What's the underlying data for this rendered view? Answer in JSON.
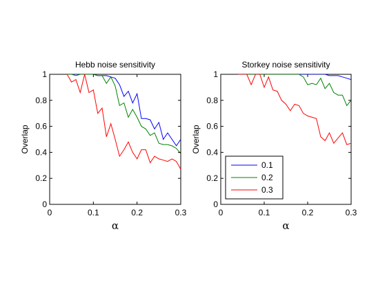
{
  "chart_data": [
    {
      "type": "line",
      "title": "Hebb noise sensitivity",
      "xlabel": "α",
      "ylabel": "Overlap",
      "xlim": [
        0,
        0.3
      ],
      "ylim": [
        0,
        1
      ],
      "xticks": [
        "0",
        "0.1",
        "0.2",
        "0.3"
      ],
      "yticks": [
        "0",
        "0.2",
        "0.4",
        "0.6",
        "0.8",
        "1"
      ],
      "grid": false,
      "series": [
        {
          "name": "0.1",
          "color": "#0000ff",
          "x": [
            0.04,
            0.05,
            0.06,
            0.07,
            0.08,
            0.09,
            0.1,
            0.11,
            0.12,
            0.13,
            0.14,
            0.15,
            0.16,
            0.17,
            0.18,
            0.19,
            0.2,
            0.21,
            0.22,
            0.23,
            0.24,
            0.25,
            0.26,
            0.27,
            0.28,
            0.29,
            0.3
          ],
          "y": [
            1.0,
            1.0,
            1.0,
            1.0,
            1.0,
            1.0,
            1.0,
            0.99,
            0.99,
            0.99,
            0.98,
            0.97,
            0.92,
            0.83,
            0.87,
            0.78,
            0.85,
            0.66,
            0.66,
            0.65,
            0.58,
            0.63,
            0.5,
            0.55,
            0.5,
            0.45,
            0.5
          ]
        },
        {
          "name": "0.2",
          "color": "#008000",
          "x": [
            0.04,
            0.05,
            0.06,
            0.07,
            0.08,
            0.09,
            0.1,
            0.11,
            0.12,
            0.13,
            0.14,
            0.15,
            0.16,
            0.17,
            0.18,
            0.19,
            0.2,
            0.21,
            0.22,
            0.23,
            0.24,
            0.25,
            0.26,
            0.27,
            0.28,
            0.29,
            0.3
          ],
          "y": [
            1.0,
            1.0,
            0.99,
            1.0,
            1.0,
            1.0,
            1.0,
            0.99,
            0.99,
            0.93,
            0.98,
            0.91,
            0.76,
            0.78,
            0.67,
            0.73,
            0.67,
            0.6,
            0.58,
            0.53,
            0.55,
            0.47,
            0.46,
            0.46,
            0.45,
            0.43,
            0.39
          ]
        },
        {
          "name": "0.3",
          "color": "#ff0000",
          "x": [
            0.04,
            0.05,
            0.06,
            0.07,
            0.08,
            0.09,
            0.1,
            0.11,
            0.12,
            0.13,
            0.14,
            0.15,
            0.16,
            0.17,
            0.18,
            0.19,
            0.2,
            0.21,
            0.22,
            0.23,
            0.24,
            0.25,
            0.26,
            0.27,
            0.28,
            0.29,
            0.3
          ],
          "y": [
            1.0,
            0.94,
            0.96,
            0.86,
            1.0,
            0.86,
            0.88,
            0.7,
            0.74,
            0.52,
            0.62,
            0.5,
            0.37,
            0.42,
            0.48,
            0.4,
            0.35,
            0.42,
            0.42,
            0.32,
            0.37,
            0.35,
            0.34,
            0.33,
            0.35,
            0.33,
            0.27
          ]
        }
      ]
    },
    {
      "type": "line",
      "title": "Storkey noise sensitivity",
      "xlabel": "α",
      "ylabel": "Overlap",
      "xlim": [
        0,
        0.3
      ],
      "ylim": [
        0,
        1
      ],
      "xticks": [
        "0",
        "0.1",
        "0.2",
        "0.3"
      ],
      "yticks": [
        "0",
        "0.2",
        "0.4",
        "0.6",
        "0.8",
        "1"
      ],
      "grid": false,
      "legend": {
        "placement": "bottom-left",
        "entries": [
          "0.1",
          "0.2",
          "0.3"
        ]
      },
      "series": [
        {
          "name": "0.1",
          "color": "#0000ff",
          "x": [
            0.04,
            0.05,
            0.06,
            0.07,
            0.08,
            0.09,
            0.1,
            0.11,
            0.12,
            0.13,
            0.14,
            0.15,
            0.16,
            0.17,
            0.18,
            0.19,
            0.2,
            0.21,
            0.22,
            0.23,
            0.24,
            0.25,
            0.26,
            0.27,
            0.28,
            0.29,
            0.3
          ],
          "y": [
            1.0,
            1.0,
            1.0,
            1.0,
            1.0,
            1.0,
            1.0,
            1.0,
            1.0,
            1.0,
            1.0,
            1.0,
            1.0,
            1.0,
            1.0,
            1.0,
            1.0,
            1.0,
            1.0,
            1.0,
            1.0,
            0.99,
            0.99,
            0.99,
            0.98,
            0.97,
            0.96
          ]
        },
        {
          "name": "0.2",
          "color": "#008000",
          "x": [
            0.04,
            0.05,
            0.06,
            0.07,
            0.08,
            0.09,
            0.1,
            0.11,
            0.12,
            0.13,
            0.14,
            0.15,
            0.16,
            0.17,
            0.18,
            0.19,
            0.2,
            0.21,
            0.22,
            0.23,
            0.24,
            0.25,
            0.26,
            0.27,
            0.28,
            0.29,
            0.3
          ],
          "y": [
            1.0,
            1.0,
            1.0,
            1.0,
            1.0,
            1.0,
            1.0,
            1.0,
            1.0,
            1.0,
            1.0,
            1.0,
            1.0,
            1.0,
            1.0,
            0.98,
            0.92,
            0.93,
            0.92,
            0.97,
            0.89,
            0.93,
            0.86,
            0.84,
            0.84,
            0.76,
            0.8
          ]
        },
        {
          "name": "0.3",
          "color": "#ff0000",
          "x": [
            0.04,
            0.05,
            0.06,
            0.07,
            0.08,
            0.09,
            0.1,
            0.11,
            0.12,
            0.13,
            0.14,
            0.15,
            0.16,
            0.17,
            0.18,
            0.19,
            0.2,
            0.21,
            0.22,
            0.23,
            0.24,
            0.25,
            0.26,
            0.27,
            0.28,
            0.29,
            0.3
          ],
          "y": [
            1.0,
            1.0,
            1.0,
            0.92,
            1.0,
            1.0,
            0.9,
            0.98,
            0.88,
            0.87,
            0.8,
            0.77,
            0.72,
            0.77,
            0.76,
            0.7,
            0.68,
            0.67,
            0.66,
            0.52,
            0.49,
            0.55,
            0.47,
            0.51,
            0.55,
            0.46,
            0.47
          ]
        }
      ]
    }
  ]
}
